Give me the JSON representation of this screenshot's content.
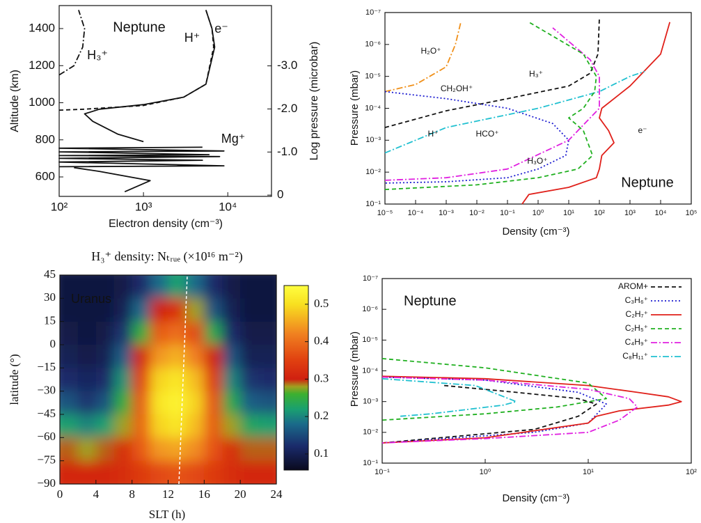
{
  "chart_data": [
    {
      "type": "line",
      "xlog": true,
      "ylog": false,
      "annotation": "Neptune",
      "xlabel": "Electron density (cm⁻³)",
      "ylabel": "Altitude (km)",
      "y2label": "Log pressure (microbar)",
      "xlim": [
        100,
        33000
      ],
      "ylim": [
        495,
        1524
      ],
      "y2lim": [
        0.03,
        -4.4
      ],
      "xticks": [
        {
          "value": 100,
          "label": "10²"
        },
        {
          "value": 1000,
          "label": "10³"
        },
        {
          "value": 10000,
          "label": "10⁴"
        }
      ],
      "yticks": [
        600,
        800,
        1000,
        1200,
        1400
      ],
      "y2ticks": [
        0,
        {
          "value": -1.0,
          "label": "-1.0"
        },
        {
          "value": -2.0,
          "label": "-2.0"
        },
        {
          "value": -3.0,
          "label": "-3.0"
        }
      ],
      "series": [
        {
          "name": "e⁻",
          "color": "#111111",
          "dash": "solid",
          "x": [
            600,
            1200,
            300,
            150,
            null,
            1000,
            500,
            250,
            200,
            300,
            1000,
            3000,
            5500,
            7000,
            6500,
            5500
          ],
          "values": [
            520,
            580,
            630,
            650,
            null,
            790,
            830,
            900,
            940,
            965,
            990,
            1030,
            1100,
            1300,
            1400,
            1500
          ]
        },
        {
          "name": "H⁺",
          "color": "#111111",
          "dash": "dashed",
          "x": [
            100,
            200,
            1000,
            3000,
            5500,
            6800,
            6500,
            5500
          ],
          "values": [
            960,
            965,
            985,
            1030,
            1100,
            1300,
            1400,
            1500
          ]
        },
        {
          "name": "H₃⁺",
          "color": "#111111",
          "dash": "dashdot",
          "x": [
            100,
            150,
            190,
            200,
            170
          ],
          "values": [
            1150,
            1200,
            1300,
            1400,
            1500
          ]
        },
        {
          "name": "Mg⁺",
          "color": "#111111",
          "dash": "solid",
          "x": [
            100,
            9000,
            100,
            5000,
            100,
            8000,
            100,
            6000,
            100,
            9000,
            100,
            5000
          ],
          "values": [
            655,
            660,
            680,
            690,
            700,
            710,
            715,
            720,
            735,
            740,
            755,
            760
          ]
        }
      ]
    },
    {
      "type": "line",
      "xlog": true,
      "ylog": true,
      "annotation": "Neptune",
      "xlabel": "Density (cm⁻³)",
      "ylabel": "Pressure (mbar)",
      "xlim": [
        1e-05,
        100000.0
      ],
      "ylim": [
        0.1,
        1e-07
      ],
      "xticks": [
        {
          "value": 1e-05,
          "label": "10⁻⁵"
        },
        {
          "value": 0.0001,
          "label": "10⁻⁴"
        },
        {
          "value": 0.001,
          "label": "10⁻³"
        },
        {
          "value": 0.01,
          "label": "10⁻²"
        },
        {
          "value": 0.1,
          "label": "10⁻¹"
        },
        {
          "value": 1,
          "label": "10⁰"
        },
        {
          "value": 10,
          "label": "10¹"
        },
        {
          "value": 100,
          "label": "10²"
        },
        {
          "value": 1000,
          "label": "10³"
        },
        {
          "value": 10000,
          "label": "10⁴"
        },
        {
          "value": 100000,
          "label": "10⁵"
        }
      ],
      "yticks": [
        {
          "value": 1e-07,
          "label": "10⁻⁷"
        },
        {
          "value": 1e-06,
          "label": "10⁻⁶"
        },
        {
          "value": 1e-05,
          "label": "10⁻⁵"
        },
        {
          "value": 0.0001,
          "label": "10⁻⁴"
        },
        {
          "value": 0.001,
          "label": "10⁻³"
        },
        {
          "value": 0.01,
          "label": "10⁻²"
        },
        {
          "value": 0.1,
          "label": "10⁻¹"
        }
      ],
      "series": [
        {
          "name": "e⁻",
          "color": "#e0201a",
          "dash": "solid",
          "x": [
            0.3,
            0.5,
            10,
            80,
            100,
            120,
            300,
            200,
            100,
            120,
            1000,
            10000,
            20000
          ],
          "values": [
            0.1,
            0.05,
            0.03,
            0.015,
            0.008,
            0.003,
            0.0012,
            0.0005,
            0.0002,
            0.0001,
            2e-05,
            2e-06,
            2e-07
          ]
        },
        {
          "name": "H₃⁺",
          "color": "#111111",
          "dash": "dashed",
          "x": [
            1e-05,
            0.001,
            0.1,
            10,
            50,
            90,
            100
          ],
          "values": [
            0.0004,
            0.00012,
            5e-05,
            2e-05,
            8e-06,
            2e-06,
            1.5e-07
          ]
        },
        {
          "name": "H₂O⁺",
          "color": "#f0901a",
          "dash": "dashdot",
          "x": [
            1e-05,
            0.0001,
            0.001,
            0.002,
            0.003
          ],
          "values": [
            3e-05,
            1.8e-05,
            5e-06,
            1e-06,
            2e-07
          ]
        },
        {
          "name": "CH₂OH⁺",
          "color": "#1a1ad0",
          "dash": "dotted",
          "x": [
            1e-05,
            0.001,
            0.1,
            3,
            10,
            8,
            1,
            0.1,
            0.001,
            1e-05
          ],
          "values": [
            3e-05,
            5e-05,
            0.0001,
            0.0003,
            0.001,
            0.003,
            0.008,
            0.015,
            0.02,
            0.022
          ]
        },
        {
          "name": "H⁺",
          "color": "#20c0d0",
          "dash": "dashdot",
          "x": [
            1e-05,
            0.001,
            1,
            100,
            1000,
            3000
          ],
          "values": [
            0.0025,
            0.0004,
            0.0001,
            3e-05,
            1e-05,
            7e-06
          ]
        },
        {
          "name": "HCO⁺",
          "color": "#e020e0",
          "dash": "dashdot",
          "x": [
            1e-05,
            0.001,
            0.1,
            10,
            100,
            100,
            50,
            3
          ],
          "values": [
            0.018,
            0.015,
            0.008,
            0.001,
            0.0001,
            1e-05,
            3e-06,
            3e-07
          ]
        },
        {
          "name": "H₃O⁺",
          "color": "#20b020",
          "dash": "dashed",
          "x": [
            1e-05,
            0.01,
            1,
            20,
            60,
            30,
            10,
            30,
            70,
            80,
            30,
            0.5
          ],
          "values": [
            0.035,
            0.025,
            0.015,
            0.008,
            0.003,
            0.0005,
            0.0002,
            0.0001,
            3e-05,
            1e-05,
            2e-06,
            2e-07
          ]
        }
      ]
    },
    {
      "type": "heatmap",
      "title": "H₃⁺ density: Nₜᵣᵤₑ (×10¹⁶ m⁻²)",
      "annotation": "Uranus",
      "xlabel": "SLT (h)",
      "ylabel": "latitude (°)",
      "xlim": [
        0,
        24
      ],
      "ylim": [
        -90,
        45
      ],
      "xticks": [
        0,
        4,
        8,
        12,
        16,
        20,
        24
      ],
      "yticks": [
        45,
        30,
        15,
        0,
        {
          "value": -15,
          "label": "−15"
        },
        {
          "value": -30,
          "label": "−30"
        },
        {
          "value": -45,
          "label": "−45"
        },
        {
          "value": -60,
          "label": "−60"
        },
        {
          "value": -75,
          "label": "−75"
        },
        {
          "value": -90,
          "label": "−90"
        }
      ],
      "x": [
        1,
        3,
        5,
        7,
        9,
        11,
        13,
        15,
        17,
        19,
        21,
        23
      ],
      "y": [
        37.5,
        22.5,
        7.5,
        -7.5,
        -22.5,
        -37.5,
        -52.5,
        -67.5,
        -82.5
      ],
      "z": [
        [
          0.08,
          0.08,
          0.08,
          0.09,
          0.12,
          0.18,
          0.22,
          0.18,
          0.12,
          0.09,
          0.08,
          0.08
        ],
        [
          0.08,
          0.08,
          0.08,
          0.1,
          0.18,
          0.3,
          0.33,
          0.28,
          0.16,
          0.1,
          0.08,
          0.08
        ],
        [
          0.09,
          0.08,
          0.09,
          0.13,
          0.25,
          0.38,
          0.4,
          0.36,
          0.24,
          0.12,
          0.09,
          0.09
        ],
        [
          0.1,
          0.09,
          0.1,
          0.17,
          0.31,
          0.44,
          0.46,
          0.42,
          0.3,
          0.16,
          0.1,
          0.1
        ],
        [
          0.12,
          0.11,
          0.12,
          0.21,
          0.35,
          0.49,
          0.51,
          0.47,
          0.34,
          0.2,
          0.13,
          0.12
        ],
        [
          0.16,
          0.13,
          0.16,
          0.25,
          0.38,
          0.51,
          0.53,
          0.49,
          0.37,
          0.24,
          0.17,
          0.16
        ],
        [
          0.22,
          0.2,
          0.22,
          0.28,
          0.39,
          0.49,
          0.51,
          0.47,
          0.38,
          0.28,
          0.23,
          0.22
        ],
        [
          0.29,
          0.28,
          0.29,
          0.32,
          0.38,
          0.44,
          0.45,
          0.43,
          0.37,
          0.32,
          0.29,
          0.29
        ],
        [
          0.31,
          0.31,
          0.31,
          0.32,
          0.34,
          0.36,
          0.37,
          0.36,
          0.34,
          0.32,
          0.31,
          0.31
        ]
      ],
      "zlim": [
        0.057,
        0.55
      ],
      "zticks": [
        0.1,
        0.2,
        0.3,
        0.4,
        0.5
      ],
      "colorscale": [
        [
          0.05,
          "#0a0a1e"
        ],
        [
          0.12,
          "#1a2a6a"
        ],
        [
          0.18,
          "#1a6a8a"
        ],
        [
          0.22,
          "#1aa070"
        ],
        [
          0.26,
          "#3cb030"
        ],
        [
          0.28,
          "#a0a020"
        ],
        [
          0.3,
          "#d02010"
        ],
        [
          0.35,
          "#e04010"
        ],
        [
          0.42,
          "#f08020"
        ],
        [
          0.5,
          "#f8e020"
        ],
        [
          0.55,
          "#ffff40"
        ]
      ]
    },
    {
      "type": "line",
      "xlog": true,
      "ylog": true,
      "annotation": "Neptune",
      "xlabel": "Density (cm⁻³)",
      "ylabel": "Pressure (mbar)",
      "xlim": [
        0.1,
        100
      ],
      "ylim": [
        0.1,
        1e-07
      ],
      "legend": "upper right",
      "xticks": [
        {
          "value": 0.1,
          "label": "10⁻¹"
        },
        {
          "value": 1,
          "label": "10⁰"
        },
        {
          "value": 10,
          "label": "10¹"
        },
        {
          "value": 100,
          "label": "10²"
        }
      ],
      "yticks": [
        {
          "value": 1e-07,
          "label": "10⁻⁷"
        },
        {
          "value": 1e-06,
          "label": "10⁻⁶"
        },
        {
          "value": 1e-05,
          "label": "10⁻⁵"
        },
        {
          "value": 0.0001,
          "label": "10⁻⁴"
        },
        {
          "value": 0.001,
          "label": "10⁻³"
        },
        {
          "value": 0.01,
          "label": "10⁻²"
        },
        {
          "value": 0.1,
          "label": "10⁻¹"
        }
      ],
      "series": [
        {
          "name": "AROM+",
          "color": "#111111",
          "dash": "dashed",
          "x": [
            0.4,
            2,
            8,
            12,
            8,
            3,
            0.1
          ],
          "values": [
            0.0003,
            0.0005,
            0.0008,
            0.0012,
            0.003,
            0.008,
            0.022
          ]
        },
        {
          "name": "C₃H₆⁺",
          "color": "#1a1ad0",
          "dash": "dotted",
          "x": [
            0.1,
            1,
            8,
            15,
            10,
            3,
            0.1
          ],
          "values": [
            0.00016,
            0.0002,
            0.0005,
            0.0012,
            0.005,
            0.01,
            0.022
          ]
        },
        {
          "name": "C₂H₇⁺",
          "color": "#e0201a",
          "dash": "solid",
          "x": [
            0.1,
            1,
            10,
            30,
            60,
            80,
            60,
            20,
            12,
            10,
            1,
            0.1
          ],
          "values": [
            0.00015,
            0.00018,
            0.0003,
            0.0005,
            0.0007,
            0.001,
            0.0013,
            0.002,
            0.003,
            0.005,
            0.015,
            0.022
          ]
        },
        {
          "name": "C₂H₅⁺",
          "color": "#20b020",
          "dash": "dashed",
          "x": [
            0.1,
            1,
            10,
            15,
            5,
            1,
            0.1
          ],
          "values": [
            4e-05,
            8e-05,
            0.00025,
            0.0008,
            0.0015,
            0.0025,
            0.004
          ]
        },
        {
          "name": "C₄H₉⁺",
          "color": "#e020e0",
          "dash": "dashdot",
          "x": [
            0.1,
            1,
            10,
            25,
            30,
            20,
            10,
            1,
            0.1
          ],
          "values": [
            0.00016,
            0.0002,
            0.0004,
            0.0008,
            0.0015,
            0.004,
            0.01,
            0.016,
            0.022
          ]
        },
        {
          "name": "C₈H₁₁⁺",
          "color": "#20c0d0",
          "dash": "dashdot",
          "x": [
            0.1,
            0.8,
            2,
            1.5,
            0.3,
            0.15
          ],
          "values": [
            0.00018,
            0.0003,
            0.001,
            0.0013,
            0.0025,
            0.003
          ]
        }
      ]
    }
  ]
}
